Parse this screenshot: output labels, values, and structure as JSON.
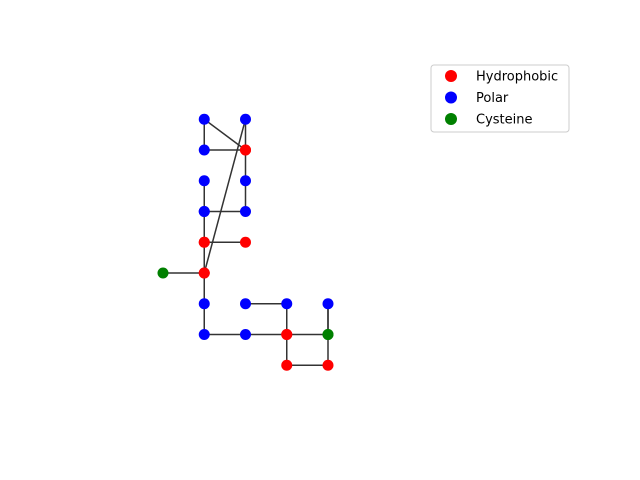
{
  "chart_data": {
    "type": "scatter",
    "title": "",
    "xlabel": "",
    "ylabel": "",
    "axes_visible": false,
    "grid": false,
    "legend_position": "top-right",
    "colors": {
      "Hydrophobic": "#ff0000",
      "Polar": "#0000ff",
      "Cysteine": "#008000",
      "edge": "#333333"
    },
    "legend": [
      {
        "label": "Hydrophobic",
        "color": "#ff0000"
      },
      {
        "label": "Polar",
        "color": "#0000ff"
      },
      {
        "label": "Cysteine",
        "color": "#008000"
      }
    ],
    "residues": [
      {
        "x": 0,
        "y": 0,
        "type": "Cysteine"
      },
      {
        "x": 1,
        "y": 0,
        "type": "Hydrophobic"
      },
      {
        "x": 1,
        "y": 1,
        "type": "Hydrophobic"
      },
      {
        "x": 2,
        "y": 1,
        "type": "Hydrophobic"
      },
      {
        "x": 1,
        "y": 1,
        "type": "Hydrophobic"
      },
      {
        "x": 1,
        "y": 2,
        "type": "Polar"
      },
      {
        "x": 1,
        "y": 3,
        "type": "Polar"
      },
      {
        "x": 1,
        "y": 2,
        "type": "Polar"
      },
      {
        "x": 2,
        "y": 2,
        "type": "Polar"
      },
      {
        "x": 2,
        "y": 3,
        "type": "Polar"
      },
      {
        "x": 2,
        "y": 4,
        "type": "Hydrophobic"
      },
      {
        "x": 1,
        "y": 4,
        "type": "Polar"
      },
      {
        "x": 1,
        "y": 5,
        "type": "Polar"
      },
      {
        "x": 2,
        "y": 4,
        "type": "Hydrophobic"
      },
      {
        "x": 2,
        "y": 5,
        "type": "Polar"
      },
      {
        "x": 1,
        "y": 0,
        "type": "Hydrophobic"
      },
      {
        "x": 1,
        "y": -1,
        "type": "Polar"
      },
      {
        "x": 1,
        "y": -2,
        "type": "Polar"
      },
      {
        "x": 2,
        "y": -2,
        "type": "Polar"
      },
      {
        "x": 3,
        "y": -2,
        "type": "Hydrophobic"
      },
      {
        "x": 3,
        "y": -3,
        "type": "Hydrophobic"
      },
      {
        "x": 4,
        "y": -3,
        "type": "Hydrophobic"
      },
      {
        "x": 4,
        "y": -2,
        "type": "Cysteine"
      },
      {
        "x": 4,
        "y": -1,
        "type": "Polar"
      },
      {
        "x": 4,
        "y": -2,
        "type": "Cysteine"
      },
      {
        "x": 3,
        "y": -2,
        "type": "Hydrophobic"
      },
      {
        "x": 3,
        "y": -1,
        "type": "Polar"
      },
      {
        "x": 2,
        "y": -1,
        "type": "Polar"
      }
    ]
  }
}
